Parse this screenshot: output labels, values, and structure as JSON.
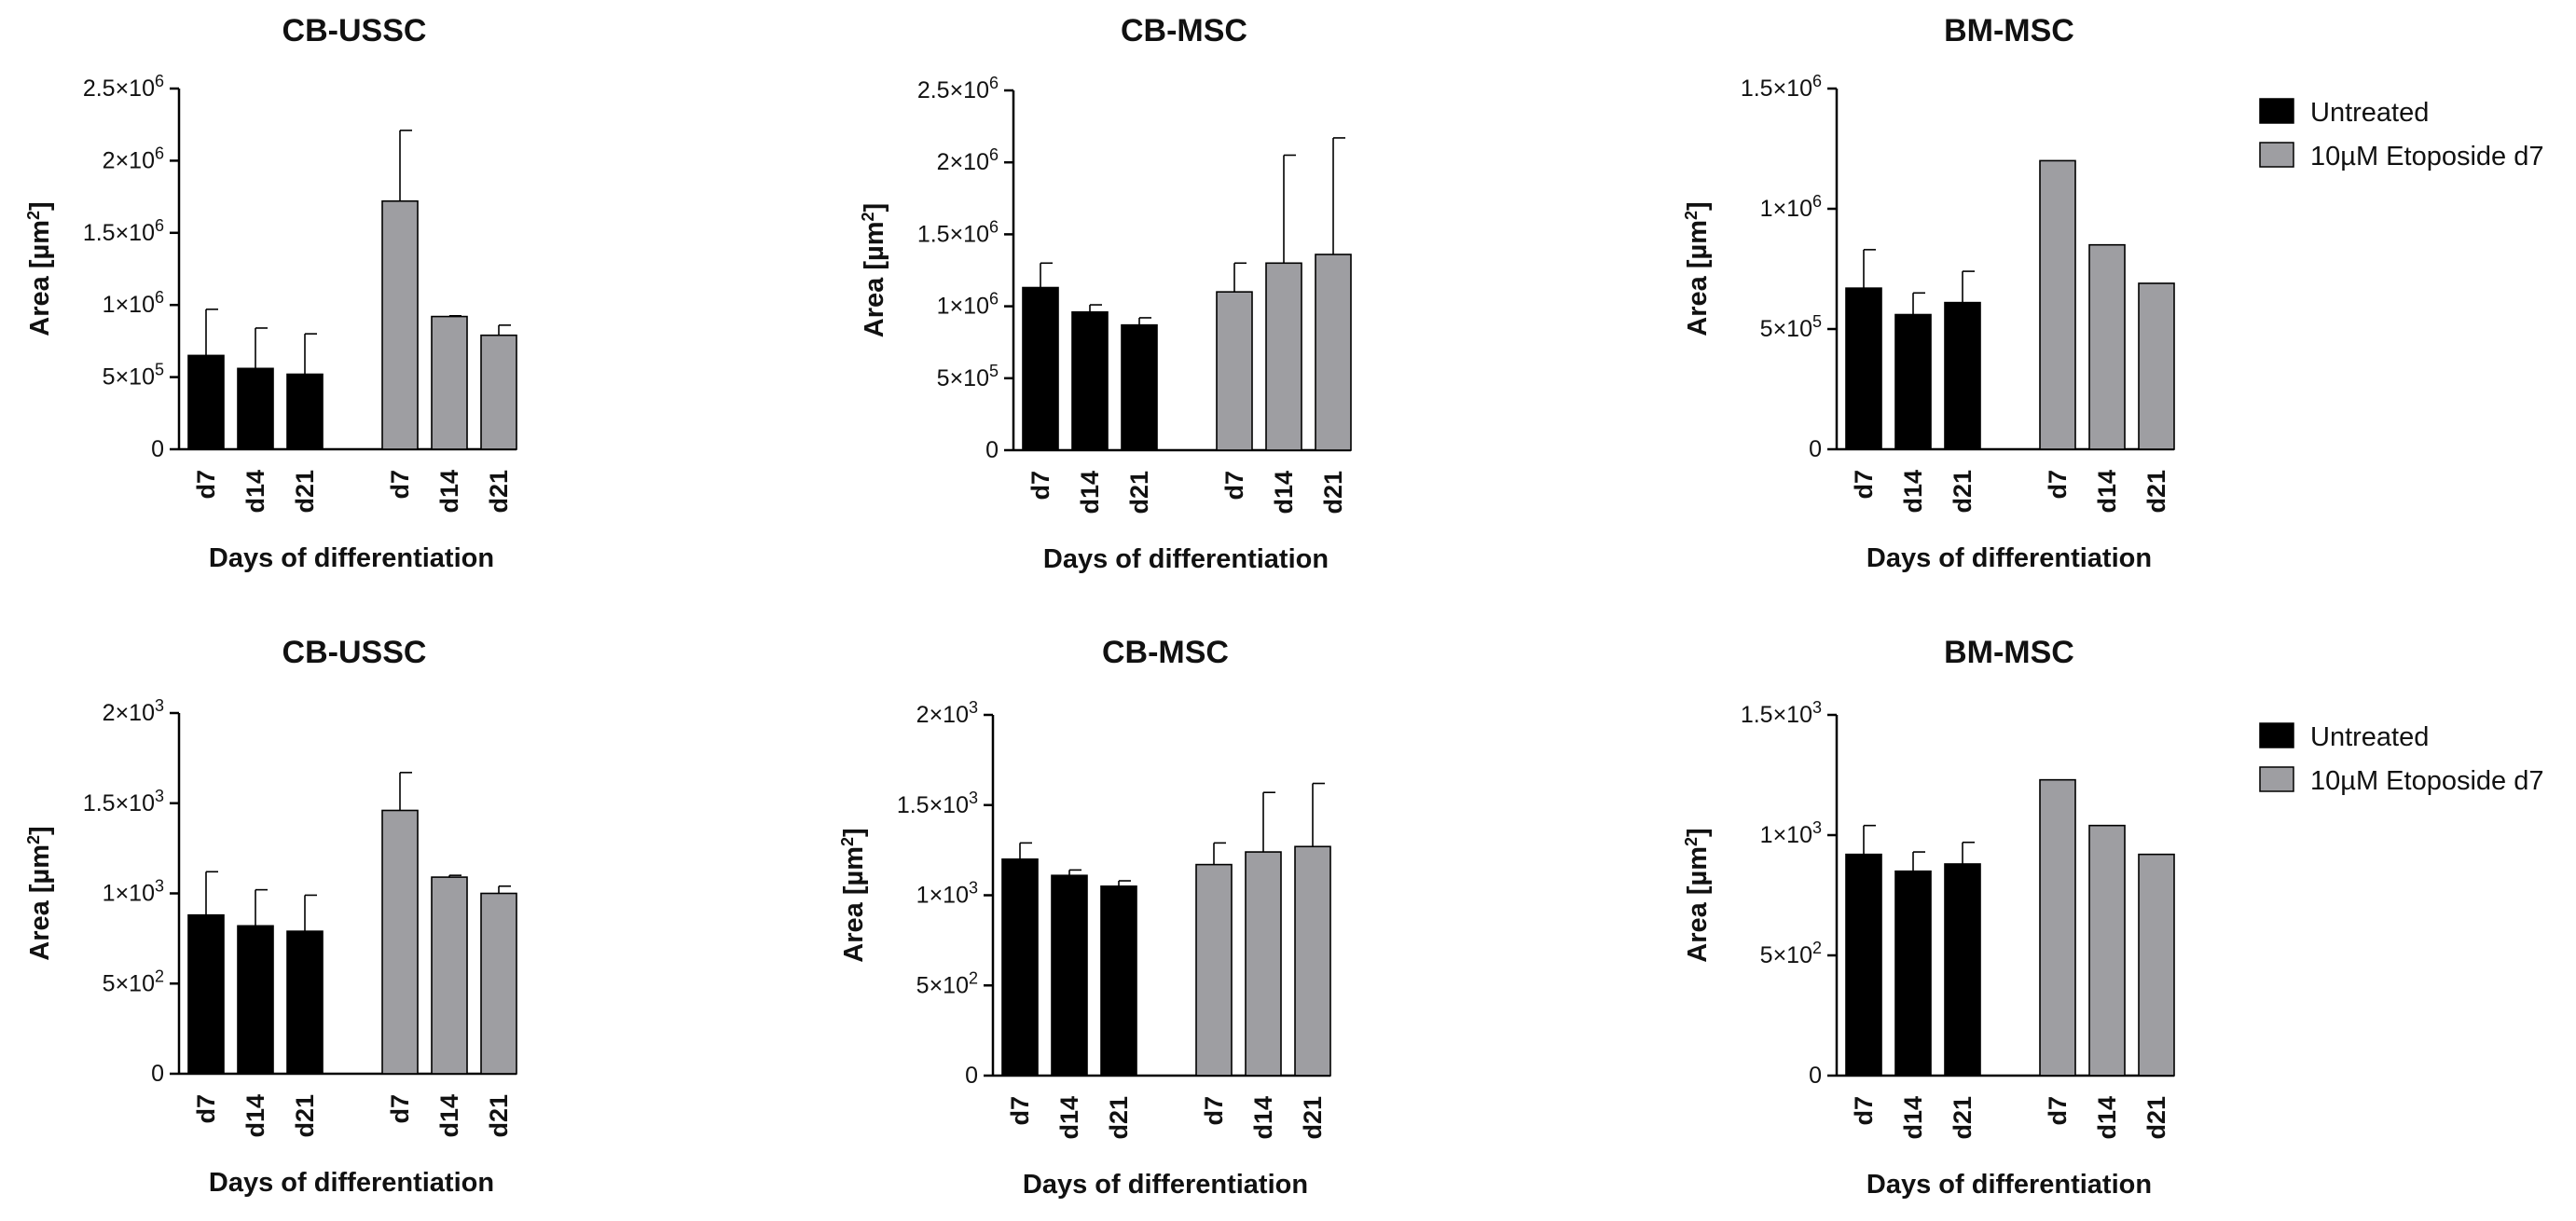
{
  "legend": {
    "untreated_label": "Untreated",
    "treated_label": "10µM Etoposide d7",
    "untreated_color": "#000000",
    "treated_color": "#9e9ea2"
  },
  "chart_data": [
    {
      "type": "bar",
      "title": "CB-USSC",
      "xlabel": "Days of differentiation",
      "ylabel": "Area [µm2]",
      "categories": [
        "d7",
        "d14",
        "d21",
        "d7",
        "d14",
        "d21"
      ],
      "groups": [
        "Untreated",
        "Untreated",
        "Untreated",
        "10µM Etoposide d7",
        "10µM Etoposide d7",
        "10µM Etoposide d7"
      ],
      "values": [
        650000,
        560000,
        520000,
        1720000,
        920000,
        790000
      ],
      "errors": [
        320000,
        280000,
        280000,
        490000,
        5000,
        70000
      ],
      "ylim": [
        0,
        2500000
      ],
      "yticks": [
        0,
        500000,
        1000000,
        1500000,
        2000000,
        2500000
      ],
      "ytick_labels": [
        "0",
        "5×10^5",
        "1×10^6",
        "1.5×10^6",
        "2×10^6",
        "2.5×10^6"
      ]
    },
    {
      "type": "bar",
      "title": "CB-MSC",
      "xlabel": "Days of differentiation",
      "ylabel": "Area [µm2]",
      "categories": [
        "d7",
        "d14",
        "d21",
        "d7",
        "d14",
        "d21"
      ],
      "groups": [
        "Untreated",
        "Untreated",
        "Untreated",
        "10µM Etoposide d7",
        "10µM Etoposide d7",
        "10µM Etoposide d7"
      ],
      "values": [
        1130000,
        960000,
        870000,
        1100000,
        1300000,
        1360000
      ],
      "errors": [
        170000,
        50000,
        50000,
        200000,
        750000,
        810000
      ],
      "ylim": [
        0,
        2500000
      ],
      "yticks": [
        0,
        500000,
        1000000,
        1500000,
        2000000,
        2500000
      ],
      "ytick_labels": [
        "0",
        "5×10^5",
        "1×10^6",
        "1.5×10^6",
        "2×10^6",
        "2.5×10^6"
      ]
    },
    {
      "type": "bar",
      "title": "BM-MSC",
      "xlabel": "Days of differentiation",
      "ylabel": "Area [µm2]",
      "categories": [
        "d7",
        "d14",
        "d21",
        "d7",
        "d14",
        "d21"
      ],
      "groups": [
        "Untreated",
        "Untreated",
        "Untreated",
        "10µM Etoposide d7",
        "10µM Etoposide d7",
        "10µM Etoposide d7"
      ],
      "values": [
        670000,
        560000,
        610000,
        1200000,
        850000,
        690000
      ],
      "errors": [
        160000,
        90000,
        130000,
        0,
        0,
        0
      ],
      "ylim": [
        0,
        1500000
      ],
      "yticks": [
        0,
        500000,
        1000000,
        1500000
      ],
      "ytick_labels": [
        "0",
        "5×10^5",
        "1×10^6",
        "1.5×10^6"
      ]
    },
    {
      "type": "bar",
      "title": "CB-USSC",
      "xlabel": "Days of differentiation",
      "ylabel": "Area [µm2]",
      "categories": [
        "d7",
        "d14",
        "d21",
        "d7",
        "d14",
        "d21"
      ],
      "groups": [
        "Untreated",
        "Untreated",
        "Untreated",
        "10µM Etoposide d7",
        "10µM Etoposide d7",
        "10µM Etoposide d7"
      ],
      "values": [
        880,
        820,
        790,
        1460,
        1090,
        1000
      ],
      "errors": [
        240,
        200,
        200,
        210,
        10,
        40
      ],
      "ylim": [
        0,
        2000
      ],
      "yticks": [
        0,
        500,
        1000,
        1500,
        2000
      ],
      "ytick_labels": [
        "0",
        "5×10^2",
        "1×10^3",
        "1.5×10^3",
        "2×10^3"
      ]
    },
    {
      "type": "bar",
      "title": "CB-MSC",
      "xlabel": "Days of differentiation",
      "ylabel": "Area [µm2]",
      "categories": [
        "d7",
        "d14",
        "d21",
        "d7",
        "d14",
        "d21"
      ],
      "groups": [
        "Untreated",
        "Untreated",
        "Untreated",
        "10µM Etoposide d7",
        "10µM Etoposide d7",
        "10µM Etoposide d7"
      ],
      "values": [
        1200,
        1110,
        1050,
        1170,
        1240,
        1270
      ],
      "errors": [
        90,
        30,
        30,
        120,
        330,
        350
      ],
      "ylim": [
        0,
        2000
      ],
      "yticks": [
        0,
        500,
        1000,
        1500,
        2000
      ],
      "ytick_labels": [
        "0",
        "5×10^2",
        "1×10^3",
        "1.5×10^3",
        "2×10^3"
      ]
    },
    {
      "type": "bar",
      "title": "BM-MSC",
      "xlabel": "Days of differentiation",
      "ylabel": "Area [µm2]",
      "categories": [
        "d7",
        "d14",
        "d21",
        "d7",
        "d14",
        "d21"
      ],
      "groups": [
        "Untreated",
        "Untreated",
        "Untreated",
        "10µM Etoposide d7",
        "10µM Etoposide d7",
        "10µM Etoposide d7"
      ],
      "values": [
        920,
        850,
        880,
        1230,
        1040,
        920
      ],
      "errors": [
        120,
        80,
        90,
        0,
        0,
        0
      ],
      "ylim": [
        0,
        1500
      ],
      "yticks": [
        0,
        500,
        1000,
        1500
      ],
      "ytick_labels": [
        "0",
        "5×10^2",
        "1×10^3",
        "1.5×10^3"
      ]
    }
  ]
}
